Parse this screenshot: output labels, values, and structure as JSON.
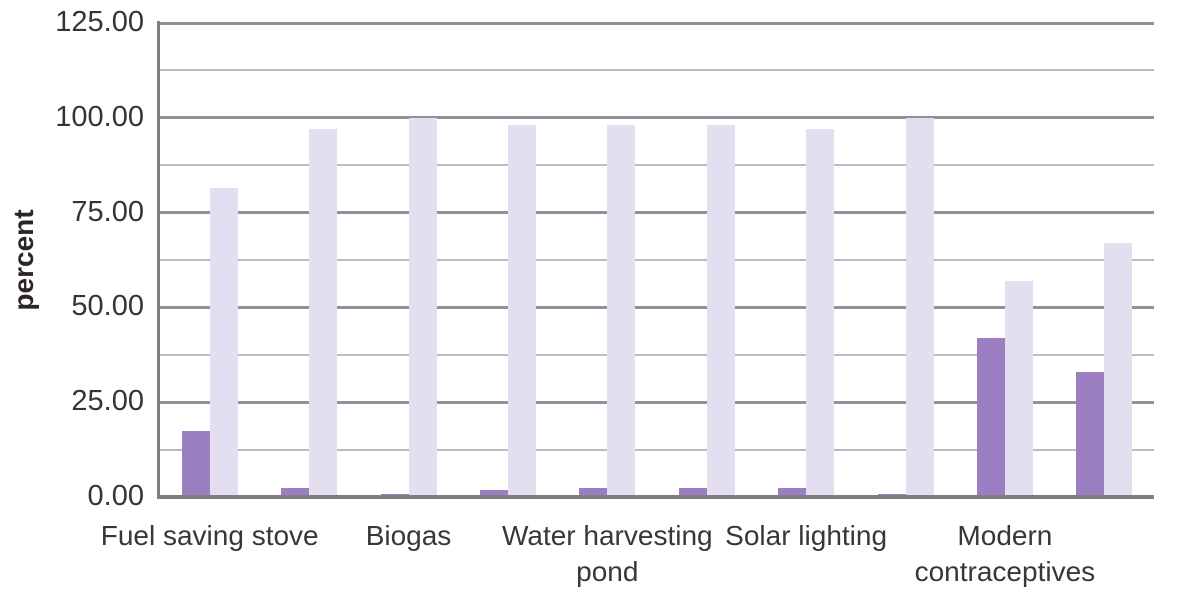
{
  "chart_data": {
    "type": "bar",
    "ylabel": "percent",
    "ylim": [
      0,
      125
    ],
    "ytick_interval": 25,
    "gridline_interval": 12.5,
    "ytick_labels": [
      "125.00",
      "100.00",
      "75.00",
      "50.00",
      "25.00",
      "0.00"
    ],
    "ytick_values": [
      125,
      100,
      75,
      50,
      25,
      0
    ],
    "grid": "horizontal major lines every 25, minor lines every 12.5",
    "legend_position": "none",
    "categories": [
      "Fuel saving stove",
      "Biogas",
      "Water harvesting\npond",
      "Solar lighting",
      "Modern\ncontraceptives"
    ],
    "pairs_per_category": 2,
    "series": [
      {
        "name": "dark-purple-series",
        "color": "#9c7fc2",
        "values": [
          17.5,
          2.5,
          0.8,
          1.8,
          2.3,
          2.3,
          2.3,
          0.8,
          42,
          33
        ]
      },
      {
        "name": "light-purple-series",
        "color": "#e3def0",
        "values": [
          81.5,
          97,
          100,
          98,
          98,
          98,
          97,
          100,
          57,
          67
        ]
      }
    ],
    "layout_note": "each category contains two adjacent dark/light bar pairs"
  },
  "styles": {
    "axis_color": "#7f7f7f",
    "major_gridline_color": "#8f929a",
    "minor_gridline_color": "#b9bcc3",
    "tick_text_color": "#383338",
    "category_text_color": "#3b3539",
    "background": "#ffffff"
  }
}
